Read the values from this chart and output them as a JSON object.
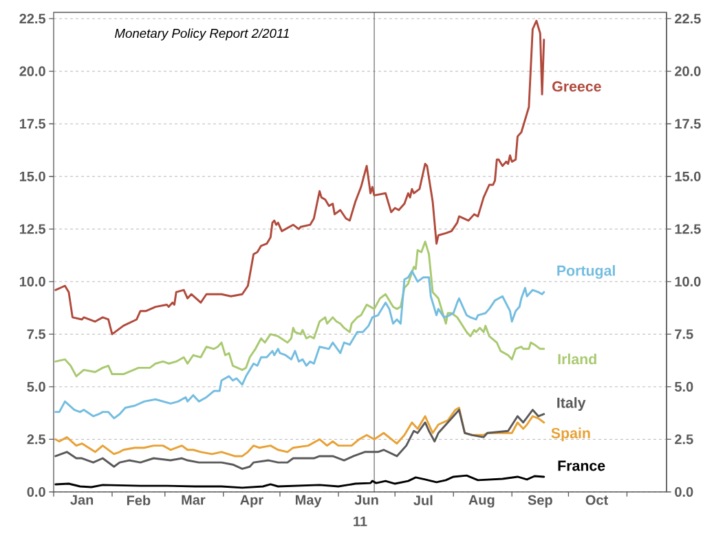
{
  "chart_data": {
    "type": "line",
    "xlabel": "11",
    "annotations": [
      "Monetary Policy Report 2/2011"
    ],
    "xlim": [
      "2011-01-01",
      "2011-11-22"
    ],
    "xticks": [
      {
        "value": "2011-01-01",
        "label": null
      },
      {
        "value": "2011-02-01",
        "label": null
      },
      {
        "value": "2011-03-01",
        "label": null
      },
      {
        "value": "2011-04-01",
        "label": null
      },
      {
        "value": "2011-05-01",
        "label": null
      },
      {
        "value": "2011-06-01",
        "label": null
      },
      {
        "value": "2011-07-01",
        "label": null
      },
      {
        "value": "2011-08-01",
        "label": null
      },
      {
        "value": "2011-09-01",
        "label": null
      },
      {
        "value": "2011-10-01",
        "label": null
      },
      {
        "value": "2011-11-01",
        "label": null
      },
      {
        "value": "2011-01-16",
        "label": "Jan"
      },
      {
        "value": "2011-02-15",
        "label": "Feb"
      },
      {
        "value": "2011-03-16",
        "label": "Mar"
      },
      {
        "value": "2011-04-16",
        "label": "Apr"
      },
      {
        "value": "2011-05-16",
        "label": "May"
      },
      {
        "value": "2011-06-16",
        "label": "Jun"
      },
      {
        "value": "2011-07-16",
        "label": "Jul"
      },
      {
        "value": "2011-08-16",
        "label": "Aug"
      },
      {
        "value": "2011-09-16",
        "label": "Sep"
      },
      {
        "value": "2011-10-16",
        "label": "Oct"
      }
    ],
    "ylim": [
      0,
      22.8
    ],
    "yticks": [
      {
        "value": 0,
        "label": "0.0"
      },
      {
        "value": 2.5,
        "label": "2.5"
      },
      {
        "value": 5,
        "label": "5.0"
      },
      {
        "value": 7.5,
        "label": "7.5"
      },
      {
        "value": 10,
        "label": "10.0"
      },
      {
        "value": 12.5,
        "label": "12.5"
      },
      {
        "value": 15,
        "label": "15.0"
      },
      {
        "value": 17.5,
        "label": "17.5"
      },
      {
        "value": 20,
        "label": "20.0"
      },
      {
        "value": 22.5,
        "label": "22.5"
      }
    ],
    "y2lim": [
      0,
      22.8
    ],
    "y2ticks": [
      {
        "value": 0,
        "label": "0.0"
      },
      {
        "value": 2.5,
        "label": "2.5"
      },
      {
        "value": 5,
        "label": "5.0"
      },
      {
        "value": 7.5,
        "label": "7.5"
      },
      {
        "value": 10,
        "label": "10.0"
      },
      {
        "value": 12.5,
        "label": "12.5"
      },
      {
        "value": 15,
        "label": "15.0"
      },
      {
        "value": 17.5,
        "label": "17.5"
      },
      {
        "value": 20,
        "label": "20.0"
      },
      {
        "value": 22.5,
        "label": "22.5"
      }
    ],
    "grid": "y",
    "marker": "none",
    "line_style": "solid",
    "ref_lines": [
      {
        "axis": "x",
        "value": "2011-06-20",
        "color": "#404040"
      }
    ],
    "series": [
      {
        "name": "Irland",
        "color": "#a9c970",
        "x": [
          "2011-01-02",
          "2011-01-07",
          "2011-01-10",
          "2011-01-13",
          "2011-01-17",
          "2011-01-23",
          "2011-01-27",
          "2011-01-30",
          "2011-02-01",
          "2011-02-07",
          "2011-02-15",
          "2011-02-21",
          "2011-02-24",
          "2011-02-28",
          "2011-03-03",
          "2011-03-07",
          "2011-03-11",
          "2011-03-13",
          "2011-03-16",
          "2011-03-20",
          "2011-03-23",
          "2011-03-27",
          "2011-03-29",
          "2011-03-31",
          "2011-04-02",
          "2011-04-04",
          "2011-04-06",
          "2011-04-11",
          "2011-04-13",
          "2011-04-15",
          "2011-04-18",
          "2011-04-21",
          "2011-04-23",
          "2011-04-26",
          "2011-04-30",
          "2011-05-05",
          "2011-05-07",
          "2011-05-08",
          "2011-05-09",
          "2011-05-12",
          "2011-05-13",
          "2011-05-15",
          "2011-05-17",
          "2011-05-19",
          "2011-05-22",
          "2011-05-25",
          "2011-05-26",
          "2011-05-29",
          "2011-05-31",
          "2011-06-02",
          "2011-06-04",
          "2011-06-07",
          "2011-06-08",
          "2011-06-11",
          "2011-06-13",
          "2011-06-16",
          "2011-06-20",
          "2011-06-23",
          "2011-06-26",
          "2011-06-30",
          "2011-07-02",
          "2011-07-04",
          "2011-07-06",
          "2011-07-08",
          "2011-07-11",
          "2011-07-12",
          "2011-07-13",
          "2011-07-15",
          "2011-07-17",
          "2011-07-19",
          "2011-07-21",
          "2011-07-24",
          "2011-07-28",
          "2011-07-29",
          "2011-07-31",
          "2011-08-03",
          "2011-08-08",
          "2011-08-10",
          "2011-08-12",
          "2011-08-13",
          "2011-08-15",
          "2011-08-17",
          "2011-08-18",
          "2011-08-20",
          "2011-08-24",
          "2011-08-26",
          "2011-08-30",
          "2011-09-01",
          "2011-09-03",
          "2011-09-06",
          "2011-09-07",
          "2011-09-10",
          "2011-09-11",
          "2011-09-13",
          "2011-09-16",
          "2011-09-18"
        ],
        "values": [
          6.2,
          6.3,
          6.0,
          5.5,
          5.8,
          5.7,
          5.9,
          6.0,
          5.6,
          5.6,
          5.9,
          5.9,
          6.1,
          6.2,
          6.1,
          6.2,
          6.4,
          6.1,
          6.5,
          6.4,
          6.9,
          6.8,
          6.9,
          7.1,
          6.5,
          6.6,
          6.0,
          5.8,
          5.9,
          6.4,
          6.8,
          7.3,
          7.1,
          7.5,
          7.4,
          7.1,
          7.3,
          7.8,
          7.6,
          7.5,
          7.7,
          7.3,
          7.4,
          7.3,
          8.1,
          8.3,
          8.0,
          8.3,
          8.1,
          8.0,
          7.8,
          7.6,
          8.0,
          8.3,
          8.4,
          8.9,
          8.7,
          9.2,
          9.4,
          8.8,
          8.7,
          8.8,
          9.7,
          9.9,
          10.7,
          10.6,
          11.5,
          11.4,
          11.9,
          11.3,
          9.5,
          9.2,
          8.0,
          8.5,
          8.5,
          8.3,
          7.6,
          7.4,
          7.7,
          7.6,
          7.8,
          7.6,
          7.9,
          7.4,
          7.1,
          6.7,
          6.5,
          6.3,
          6.8,
          6.9,
          6.8,
          6.8,
          7.1,
          7.0,
          6.8,
          6.8
        ]
      },
      {
        "name": "Portugal",
        "color": "#74bde0",
        "x": [
          "2011-01-02",
          "2011-01-04",
          "2011-01-07",
          "2011-01-12",
          "2011-01-15",
          "2011-01-17",
          "2011-01-22",
          "2011-01-25",
          "2011-01-27",
          "2011-01-30",
          "2011-02-02",
          "2011-02-05",
          "2011-02-08",
          "2011-02-13",
          "2011-02-18",
          "2011-02-24",
          "2011-03-04",
          "2011-03-08",
          "2011-03-12",
          "2011-03-13",
          "2011-03-16",
          "2011-03-19",
          "2011-03-23",
          "2011-03-27",
          "2011-03-30",
          "2011-03-31",
          "2011-04-04",
          "2011-04-06",
          "2011-04-08",
          "2011-04-11",
          "2011-04-13",
          "2011-04-15",
          "2011-04-17",
          "2011-04-19",
          "2011-04-21",
          "2011-04-24",
          "2011-04-27",
          "2011-04-28",
          "2011-04-30",
          "2011-05-01",
          "2011-05-04",
          "2011-05-07",
          "2011-05-09",
          "2011-05-11",
          "2011-05-13",
          "2011-05-15",
          "2011-05-17",
          "2011-05-19",
          "2011-05-22",
          "2011-05-27",
          "2011-05-29",
          "2011-06-02",
          "2011-06-04",
          "2011-06-07",
          "2011-06-09",
          "2011-06-11",
          "2011-06-14",
          "2011-06-17",
          "2011-06-19",
          "2011-06-22",
          "2011-06-26",
          "2011-06-28",
          "2011-06-30",
          "2011-07-02",
          "2011-07-04",
          "2011-07-06",
          "2011-07-08",
          "2011-07-10",
          "2011-07-13",
          "2011-07-16",
          "2011-07-19",
          "2011-07-20",
          "2011-07-23",
          "2011-07-24",
          "2011-07-27",
          "2011-07-30",
          "2011-08-01",
          "2011-08-03",
          "2011-08-04",
          "2011-08-08",
          "2011-08-10",
          "2011-08-13",
          "2011-08-14",
          "2011-08-18",
          "2011-08-20",
          "2011-08-23",
          "2011-08-27",
          "2011-08-31",
          "2011-09-01",
          "2011-09-03",
          "2011-09-05",
          "2011-09-06",
          "2011-09-08",
          "2011-09-09",
          "2011-09-12",
          "2011-09-15",
          "2011-09-17",
          "2011-09-18"
        ],
        "values": [
          3.8,
          3.8,
          4.3,
          3.9,
          3.8,
          3.9,
          3.6,
          3.7,
          3.8,
          3.8,
          3.5,
          3.7,
          4.0,
          4.1,
          4.3,
          4.4,
          4.2,
          4.3,
          4.5,
          4.3,
          4.6,
          4.3,
          4.5,
          4.8,
          4.8,
          5.3,
          5.5,
          5.3,
          5.4,
          5.1,
          5.5,
          5.8,
          6.1,
          6.0,
          6.4,
          6.4,
          6.7,
          6.5,
          6.8,
          6.6,
          6.5,
          6.3,
          6.7,
          6.2,
          6.3,
          6.0,
          6.2,
          6.1,
          6.9,
          6.8,
          7.1,
          6.6,
          7.1,
          7.0,
          7.3,
          7.6,
          7.6,
          7.9,
          8.3,
          8.4,
          9.0,
          8.7,
          8.0,
          8.2,
          8.0,
          10.1,
          10.2,
          10.5,
          10.0,
          10.2,
          10.2,
          9.3,
          8.4,
          8.7,
          8.3,
          8.4,
          8.5,
          9.0,
          9.2,
          8.4,
          8.3,
          8.2,
          8.4,
          8.5,
          8.7,
          9.1,
          9.3,
          8.6,
          8.1,
          8.6,
          8.8,
          9.2,
          9.7,
          9.3,
          9.6,
          9.5,
          9.4,
          9.5
        ]
      },
      {
        "name": "Spain",
        "color": "#e8a135",
        "x": [
          "2011-01-02",
          "2011-01-04",
          "2011-01-08",
          "2011-01-13",
          "2011-01-16",
          "2011-01-23",
          "2011-01-27",
          "2011-02-02",
          "2011-02-05",
          "2011-02-07",
          "2011-02-13",
          "2011-02-18",
          "2011-02-23",
          "2011-02-28",
          "2011-03-04",
          "2011-03-10",
          "2011-03-13",
          "2011-03-16",
          "2011-03-20",
          "2011-03-26",
          "2011-03-31",
          "2011-04-07",
          "2011-04-11",
          "2011-04-14",
          "2011-04-17",
          "2011-04-20",
          "2011-04-26",
          "2011-04-30",
          "2011-05-05",
          "2011-05-08",
          "2011-05-16",
          "2011-05-22",
          "2011-05-26",
          "2011-05-29",
          "2011-06-01",
          "2011-06-04",
          "2011-06-08",
          "2011-06-12",
          "2011-06-16",
          "2011-06-20",
          "2011-06-25",
          "2011-07-02",
          "2011-07-06",
          "2011-07-10",
          "2011-07-13",
          "2011-07-17",
          "2011-07-19",
          "2011-07-21",
          "2011-07-24",
          "2011-07-29",
          "2011-08-02",
          "2011-08-04",
          "2011-08-07",
          "2011-08-11",
          "2011-08-17",
          "2011-08-19",
          "2011-08-27",
          "2011-09-01",
          "2011-09-04",
          "2011-09-07",
          "2011-09-09",
          "2011-09-12",
          "2011-09-15",
          "2011-09-18"
        ],
        "values": [
          2.5,
          2.4,
          2.6,
          2.2,
          2.3,
          1.9,
          2.2,
          1.8,
          1.9,
          2.0,
          2.1,
          2.1,
          2.2,
          2.2,
          2.0,
          2.2,
          2.0,
          2.0,
          1.9,
          1.8,
          1.9,
          1.7,
          1.7,
          1.9,
          2.2,
          2.1,
          2.2,
          2.0,
          1.9,
          2.1,
          2.2,
          2.5,
          2.2,
          2.4,
          2.2,
          2.2,
          2.2,
          2.5,
          2.7,
          2.5,
          2.8,
          2.3,
          2.7,
          3.3,
          3.0,
          3.6,
          3.2,
          2.8,
          3.2,
          3.4,
          3.9,
          4.0,
          2.8,
          2.7,
          2.7,
          2.8,
          2.8,
          2.8,
          3.3,
          3.0,
          3.2,
          3.6,
          3.5,
          3.3
        ]
      },
      {
        "name": "Italy",
        "color": "#595959",
        "x": [
          "2011-01-02",
          "2011-01-08",
          "2011-01-13",
          "2011-01-16",
          "2011-01-22",
          "2011-01-27",
          "2011-02-02",
          "2011-02-05",
          "2011-02-10",
          "2011-02-16",
          "2011-02-23",
          "2011-03-04",
          "2011-03-10",
          "2011-03-13",
          "2011-03-19",
          "2011-03-27",
          "2011-03-31",
          "2011-04-06",
          "2011-04-11",
          "2011-04-15",
          "2011-04-17",
          "2011-04-25",
          "2011-04-30",
          "2011-05-05",
          "2011-05-08",
          "2011-05-19",
          "2011-05-22",
          "2011-05-29",
          "2011-06-04",
          "2011-06-09",
          "2011-06-12",
          "2011-06-15",
          "2011-06-22",
          "2011-06-25",
          "2011-07-02",
          "2011-07-07",
          "2011-07-11",
          "2011-07-13",
          "2011-07-17",
          "2011-07-19",
          "2011-07-22",
          "2011-07-24",
          "2011-07-29",
          "2011-08-02",
          "2011-08-04",
          "2011-08-07",
          "2011-08-11",
          "2011-08-17",
          "2011-08-19",
          "2011-08-30",
          "2011-09-04",
          "2011-09-07",
          "2011-09-12",
          "2011-09-15",
          "2011-09-18"
        ],
        "values": [
          1.7,
          1.9,
          1.6,
          1.6,
          1.4,
          1.6,
          1.2,
          1.4,
          1.5,
          1.4,
          1.6,
          1.5,
          1.6,
          1.5,
          1.4,
          1.4,
          1.4,
          1.3,
          1.1,
          1.2,
          1.4,
          1.5,
          1.4,
          1.4,
          1.6,
          1.6,
          1.7,
          1.7,
          1.5,
          1.7,
          1.8,
          1.9,
          1.9,
          2.0,
          1.7,
          2.2,
          2.9,
          2.8,
          3.3,
          2.9,
          2.4,
          2.8,
          3.3,
          3.7,
          3.9,
          2.8,
          2.7,
          2.6,
          2.8,
          2.9,
          3.6,
          3.3,
          3.9,
          3.6,
          3.7
        ]
      },
      {
        "name": "France",
        "color": "#000000",
        "x": [
          "2011-01-02",
          "2011-01-09",
          "2011-01-15",
          "2011-01-21",
          "2011-01-27",
          "2011-02-16",
          "2011-03-02",
          "2011-03-17",
          "2011-03-31",
          "2011-04-11",
          "2011-04-22",
          "2011-04-26",
          "2011-04-30",
          "2011-05-22",
          "2011-06-01",
          "2011-06-10",
          "2011-06-18",
          "2011-06-19",
          "2011-06-21",
          "2011-06-26",
          "2011-07-01",
          "2011-07-08",
          "2011-07-12",
          "2011-07-17",
          "2011-07-23",
          "2011-07-28",
          "2011-08-01",
          "2011-08-08",
          "2011-08-14",
          "2011-08-27",
          "2011-09-04",
          "2011-09-09",
          "2011-09-13",
          "2011-09-18"
        ],
        "values": [
          0.36,
          0.39,
          0.26,
          0.23,
          0.33,
          0.29,
          0.29,
          0.26,
          0.26,
          0.2,
          0.26,
          0.36,
          0.26,
          0.33,
          0.26,
          0.39,
          0.42,
          0.52,
          0.42,
          0.52,
          0.39,
          0.52,
          0.69,
          0.59,
          0.46,
          0.56,
          0.72,
          0.78,
          0.56,
          0.62,
          0.72,
          0.59,
          0.75,
          0.72
        ]
      },
      {
        "name": "Greece",
        "color": "#b04a3c",
        "x": [
          "2011-01-02",
          "2011-01-07",
          "2011-01-09",
          "2011-01-11",
          "2011-01-16",
          "2011-01-17",
          "2011-01-23",
          "2011-01-27",
          "2011-01-30",
          "2011-02-01",
          "2011-02-04",
          "2011-02-07",
          "2011-02-14",
          "2011-02-16",
          "2011-02-19",
          "2011-02-24",
          "2011-03-02",
          "2011-03-03",
          "2011-03-05",
          "2011-03-06",
          "2011-03-07",
          "2011-03-11",
          "2011-03-13",
          "2011-03-15",
          "2011-03-20",
          "2011-03-23",
          "2011-03-29",
          "2011-03-31",
          "2011-04-05",
          "2011-04-11",
          "2011-04-14",
          "2011-04-15",
          "2011-04-17",
          "2011-04-19",
          "2011-04-21",
          "2011-04-24",
          "2011-04-26",
          "2011-04-27",
          "2011-04-28",
          "2011-04-29",
          "2011-04-30",
          "2011-05-02",
          "2011-05-08",
          "2011-05-11",
          "2011-05-12",
          "2011-05-17",
          "2011-05-19",
          "2011-05-22",
          "2011-05-23",
          "2011-05-25",
          "2011-05-27",
          "2011-05-29",
          "2011-05-30",
          "2011-06-02",
          "2011-06-05",
          "2011-06-07",
          "2011-06-08",
          "2011-06-10",
          "2011-06-13",
          "2011-06-16",
          "2011-06-18",
          "2011-06-19",
          "2011-06-20",
          "2011-06-26",
          "2011-06-29",
          "2011-07-01",
          "2011-07-03",
          "2011-07-06",
          "2011-07-08",
          "2011-07-09",
          "2011-07-10",
          "2011-07-11",
          "2011-07-14",
          "2011-07-17",
          "2011-07-18",
          "2011-07-21",
          "2011-07-23",
          "2011-07-24",
          "2011-07-28",
          "2011-07-31",
          "2011-08-03",
          "2011-08-04",
          "2011-08-09",
          "2011-08-12",
          "2011-08-14",
          "2011-08-17",
          "2011-08-20",
          "2011-08-22",
          "2011-08-23",
          "2011-08-24",
          "2011-08-25",
          "2011-08-27",
          "2011-08-29",
          "2011-08-30",
          "2011-08-31",
          "2011-09-01",
          "2011-09-03",
          "2011-09-04",
          "2011-09-06",
          "2011-09-10",
          "2011-09-12",
          "2011-09-14",
          "2011-09-16",
          "2011-09-17",
          "2011-09-18"
        ],
        "values": [
          9.6,
          9.8,
          9.5,
          8.3,
          8.2,
          8.3,
          8.1,
          8.3,
          8.2,
          7.5,
          7.7,
          7.9,
          8.2,
          8.6,
          8.6,
          8.8,
          8.9,
          8.8,
          9.0,
          8.9,
          9.5,
          9.6,
          9.2,
          9.4,
          9.0,
          9.4,
          9.4,
          9.4,
          9.3,
          9.4,
          9.8,
          10.3,
          11.3,
          11.4,
          11.7,
          11.8,
          12.1,
          12.8,
          12.9,
          12.7,
          12.8,
          12.4,
          12.7,
          12.5,
          12.6,
          12.7,
          13.0,
          14.3,
          14.0,
          13.9,
          13.6,
          13.7,
          13.2,
          13.4,
          13.0,
          12.9,
          13.2,
          13.8,
          14.5,
          15.5,
          14.2,
          14.5,
          14.1,
          14.2,
          13.3,
          13.5,
          13.4,
          13.7,
          14.2,
          14.0,
          14.4,
          14.2,
          14.4,
          15.6,
          15.5,
          13.8,
          11.8,
          12.2,
          12.3,
          12.4,
          12.8,
          13.1,
          12.9,
          13.2,
          13.1,
          14.0,
          14.6,
          14.6,
          14.8,
          15.8,
          15.8,
          15.5,
          15.7,
          15.6,
          16.0,
          15.7,
          15.8,
          16.9,
          17.1,
          18.3,
          22.0,
          22.4,
          21.8,
          18.9,
          21.5
        ]
      }
    ]
  }
}
